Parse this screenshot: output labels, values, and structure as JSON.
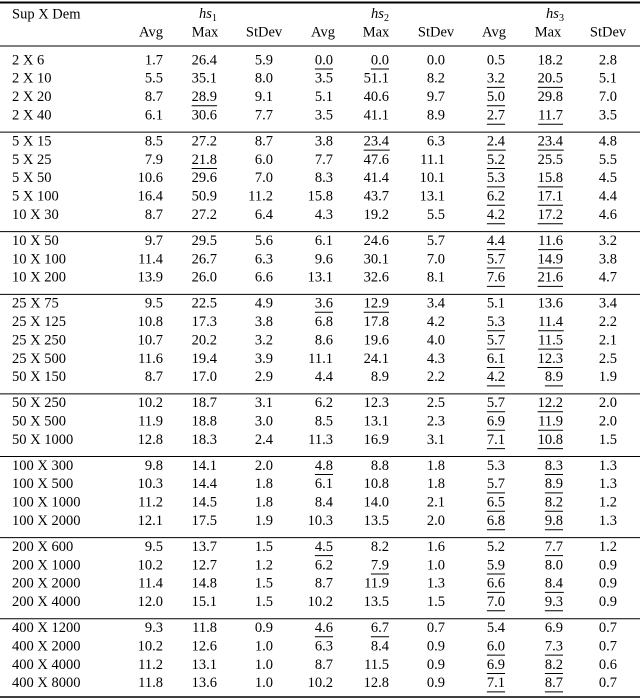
{
  "table": {
    "corner": "Sup X Dem",
    "heuristics": [
      {
        "name": "hs",
        "sub": "1"
      },
      {
        "name": "hs",
        "sub": "2"
      },
      {
        "name": "hs",
        "sub": "3"
      }
    ],
    "columns": [
      "Avg",
      "Max",
      "StDev"
    ],
    "groups": [
      [
        {
          "label": "2 X 6",
          "cells": [
            "1.7",
            "26.4",
            "5.9",
            "0.0",
            "0.0",
            "0.0",
            "0.5",
            "18.2",
            "2.8"
          ],
          "underline": [
            3,
            4
          ]
        },
        {
          "label": "2 X 10",
          "cells": [
            "5.5",
            "35.1",
            "8.0",
            "3.5",
            "51.1",
            "8.2",
            "3.2",
            "20.5",
            "5.1"
          ],
          "underline": [
            6,
            7
          ]
        },
        {
          "label": "2 X 20",
          "cells": [
            "8.7",
            "28.9",
            "9.1",
            "5.1",
            "40.6",
            "9.7",
            "5.0",
            "29.8",
            "7.0"
          ],
          "underline": [
            1,
            6
          ]
        },
        {
          "label": "2 X 40",
          "cells": [
            "6.1",
            "30.6",
            "7.7",
            "3.5",
            "41.1",
            "8.9",
            "2.7",
            "11.7",
            "3.5"
          ],
          "underline": [
            6,
            7
          ]
        }
      ],
      [
        {
          "label": "5 X 15",
          "cells": [
            "8.5",
            "27.2",
            "8.7",
            "3.8",
            "23.4",
            "6.3",
            "2.4",
            "23.4",
            "4.8"
          ],
          "underline": [
            4,
            6,
            7
          ]
        },
        {
          "label": "5 X 25",
          "cells": [
            "7.9",
            "21.8",
            "6.0",
            "7.7",
            "47.6",
            "11.1",
            "5.2",
            "25.5",
            "5.5"
          ],
          "underline": [
            1,
            6
          ]
        },
        {
          "label": "5 X 50",
          "cells": [
            "10.6",
            "29.6",
            "7.0",
            "8.3",
            "41.4",
            "10.1",
            "5.3",
            "15.8",
            "4.5"
          ],
          "underline": [
            6,
            7
          ]
        },
        {
          "label": "5 X 100",
          "cells": [
            "16.4",
            "50.9",
            "11.2",
            "15.8",
            "43.7",
            "13.1",
            "6.2",
            "17.1",
            "4.4"
          ],
          "underline": [
            6,
            7
          ]
        },
        {
          "label": "10 X 30",
          "cells": [
            "8.7",
            "27.2",
            "6.4",
            "4.3",
            "19.2",
            "5.5",
            "4.2",
            "17.2",
            "4.6"
          ],
          "underline": [
            6,
            7
          ]
        }
      ],
      [
        {
          "label": "10 X 50",
          "cells": [
            "9.7",
            "29.5",
            "5.6",
            "6.1",
            "24.6",
            "5.7",
            "4.4",
            "11.6",
            "3.2"
          ],
          "underline": [
            6,
            7
          ]
        },
        {
          "label": "10 X 100",
          "cells": [
            "11.4",
            "26.7",
            "6.3",
            "9.6",
            "30.1",
            "7.0",
            "5.7",
            "14.9",
            "3.8"
          ],
          "underline": [
            6,
            7
          ]
        },
        {
          "label": "10 X 200",
          "cells": [
            "13.9",
            "26.0",
            "6.6",
            "13.1",
            "32.6",
            "8.1",
            "7.6",
            "21.6",
            "4.7"
          ],
          "underline": [
            6,
            7
          ]
        }
      ],
      [
        {
          "label": "25 X 75",
          "cells": [
            "9.5",
            "22.5",
            "4.9",
            "3.6",
            "12.9",
            "3.4",
            "5.1",
            "13.6",
            "3.4"
          ],
          "underline": [
            3,
            4
          ]
        },
        {
          "label": "25 X 125",
          "cells": [
            "10.8",
            "17.3",
            "3.8",
            "6.8",
            "17.8",
            "4.2",
            "5.3",
            "11.4",
            "2.2"
          ],
          "underline": [
            6,
            7
          ]
        },
        {
          "label": "25 X 250",
          "cells": [
            "10.7",
            "20.2",
            "3.2",
            "8.6",
            "19.6",
            "4.0",
            "5.7",
            "11.5",
            "2.1"
          ],
          "underline": [
            6,
            7
          ]
        },
        {
          "label": "25 X 500",
          "cells": [
            "11.6",
            "19.4",
            "3.9",
            "11.1",
            "24.1",
            "4.3",
            "6.1",
            "12.3",
            "2.5"
          ],
          "underline": [
            6,
            7
          ]
        },
        {
          "label": "50 X 150",
          "cells": [
            "8.7",
            "17.0",
            "2.9",
            "4.4",
            "8.9",
            "2.2",
            "4.2",
            "8.9",
            "1.9"
          ],
          "underline": [
            6,
            7
          ]
        }
      ],
      [
        {
          "label": "50 X 250",
          "cells": [
            "10.2",
            "18.7",
            "3.1",
            "6.2",
            "12.3",
            "2.5",
            "5.7",
            "12.2",
            "2.0"
          ],
          "underline": [
            6,
            7
          ]
        },
        {
          "label": "50 X 500",
          "cells": [
            "11.9",
            "18.8",
            "3.0",
            "8.5",
            "13.1",
            "2.3",
            "6.9",
            "11.9",
            "2.0"
          ],
          "underline": [
            6,
            7
          ]
        },
        {
          "label": "50 X 1000",
          "cells": [
            "12.8",
            "18.3",
            "2.4",
            "11.3",
            "16.9",
            "3.1",
            "7.1",
            "10.8",
            "1.5"
          ],
          "underline": [
            6,
            7
          ]
        }
      ],
      [
        {
          "label": "100 X 300",
          "cells": [
            "9.8",
            "14.1",
            "2.0",
            "4.8",
            "8.8",
            "1.8",
            "5.3",
            "8.3",
            "1.3"
          ],
          "underline": [
            3,
            7
          ]
        },
        {
          "label": "100 X 500",
          "cells": [
            "10.3",
            "14.4",
            "1.8",
            "6.1",
            "10.8",
            "1.8",
            "5.7",
            "8.9",
            "1.3"
          ],
          "underline": [
            6,
            7
          ]
        },
        {
          "label": "100 X 1000",
          "cells": [
            "11.2",
            "14.5",
            "1.8",
            "8.4",
            "14.0",
            "2.1",
            "6.5",
            "8.2",
            "1.2"
          ],
          "underline": [
            6,
            7
          ]
        },
        {
          "label": "100 X 2000",
          "cells": [
            "12.1",
            "17.5",
            "1.9",
            "10.3",
            "13.5",
            "2.0",
            "6.8",
            "9.8",
            "1.3"
          ],
          "underline": [
            6,
            7
          ]
        }
      ],
      [
        {
          "label": "200 X 600",
          "cells": [
            "9.5",
            "13.7",
            "1.5",
            "4.5",
            "8.2",
            "1.6",
            "5.2",
            "7.7",
            "1.2"
          ],
          "underline": [
            3,
            7
          ]
        },
        {
          "label": "200 X 1000",
          "cells": [
            "10.2",
            "12.7",
            "1.2",
            "6.2",
            "7.9",
            "1.0",
            "5.9",
            "8.0",
            "0.9"
          ],
          "underline": [
            4,
            6
          ]
        },
        {
          "label": "200 X 2000",
          "cells": [
            "11.4",
            "14.8",
            "1.5",
            "8.7",
            "11.9",
            "1.3",
            "6.6",
            "8.4",
            "0.9"
          ],
          "underline": [
            6,
            7
          ]
        },
        {
          "label": "200 X 4000",
          "cells": [
            "12.0",
            "15.1",
            "1.5",
            "10.2",
            "13.5",
            "1.5",
            "7.0",
            "9.3",
            "0.9"
          ],
          "underline": [
            6,
            7
          ]
        }
      ],
      [
        {
          "label": "400 X 1200",
          "cells": [
            "9.3",
            "11.8",
            "0.9",
            "4.6",
            "6.7",
            "0.7",
            "5.4",
            "6.9",
            "0.7"
          ],
          "underline": [
            3,
            4
          ]
        },
        {
          "label": "400 X 2000",
          "cells": [
            "10.2",
            "12.6",
            "1.0",
            "6.3",
            "8.4",
            "0.9",
            "6.0",
            "7.3",
            "0.7"
          ],
          "underline": [
            6,
            7
          ]
        },
        {
          "label": "400 X 4000",
          "cells": [
            "11.2",
            "13.1",
            "1.0",
            "8.7",
            "11.5",
            "0.9",
            "6.9",
            "8.2",
            "0.6"
          ],
          "underline": [
            6,
            7
          ]
        },
        {
          "label": "400 X 8000",
          "cells": [
            "11.8",
            "13.6",
            "1.0",
            "10.2",
            "12.8",
            "0.9",
            "7.1",
            "8.7",
            "0.7"
          ],
          "underline": [
            6,
            7
          ]
        }
      ]
    ]
  }
}
